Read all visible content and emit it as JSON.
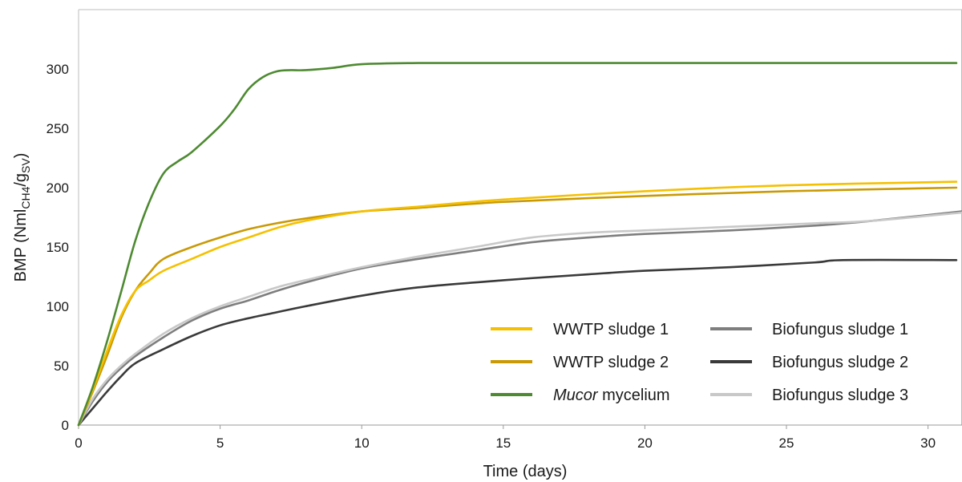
{
  "chart_data": {
    "type": "line",
    "xlabel": "Time (days)",
    "ylabel": {
      "main": "BMP (Nml",
      "sub1": "CH4",
      "mid": "/g",
      "sub2": "SV",
      "end": ")"
    },
    "xlim": [
      0,
      31.2
    ],
    "ylim": [
      0,
      350
    ],
    "xticks": [
      0,
      5,
      10,
      15,
      20,
      25,
      30
    ],
    "yticks": [
      0,
      50,
      100,
      150,
      200,
      250,
      300
    ],
    "grid": false,
    "legend_position": "bottom-right",
    "series": [
      {
        "name": "WWTP sludge 1",
        "color": "#F5C000",
        "x": [
          0,
          0.5,
          1,
          1.5,
          2,
          2.5,
          3,
          4,
          5,
          6,
          7,
          8,
          10,
          12,
          15,
          20,
          25,
          31
        ],
        "y": [
          0,
          30,
          62,
          92,
          113,
          122,
          130,
          140,
          150,
          158,
          166,
          172,
          180,
          184,
          190,
          197,
          202,
          205
        ]
      },
      {
        "name": "WWTP sludge 2",
        "color": "#C99A06",
        "x": [
          0,
          0.5,
          1,
          1.5,
          2,
          2.5,
          3,
          4,
          5,
          6,
          7,
          8,
          10,
          12,
          15,
          20,
          25,
          31
        ],
        "y": [
          0,
          28,
          58,
          90,
          113,
          128,
          140,
          150,
          158,
          165,
          170,
          174,
          180,
          183,
          188,
          193,
          197,
          200
        ]
      },
      {
        "name": "Mucor mycelium",
        "color": "#4E8A32",
        "x": [
          0,
          0.5,
          1,
          1.5,
          2,
          2.5,
          3,
          3.5,
          4,
          5,
          5.5,
          6,
          6.5,
          7,
          7.5,
          8,
          9,
          10,
          12,
          15,
          20,
          31
        ],
        "y": [
          0,
          32,
          70,
          112,
          155,
          188,
          212,
          222,
          230,
          252,
          266,
          283,
          293,
          298,
          299,
          299,
          301,
          304,
          305,
          305,
          305,
          305
        ]
      },
      {
        "name": "Biofungus sludge 1",
        "color": "#7E7E7E",
        "x": [
          0,
          0.5,
          1,
          1.5,
          2,
          3,
          4,
          5,
          6,
          7,
          8,
          10,
          12,
          14,
          16,
          18,
          20,
          23,
          26,
          28,
          31.2
        ],
        "y": [
          0,
          20,
          36,
          48,
          58,
          74,
          88,
          98,
          105,
          113,
          120,
          132,
          140,
          147,
          154,
          158,
          161,
          164,
          168,
          172,
          180
        ]
      },
      {
        "name": "Biofungus sludge 2",
        "color": "#3A3A3A",
        "x": [
          0,
          0.5,
          1,
          1.5,
          2,
          3,
          4,
          5,
          6,
          7,
          8,
          10,
          12,
          15,
          18,
          20,
          23,
          26,
          27,
          31
        ],
        "y": [
          0,
          14,
          28,
          41,
          52,
          64,
          75,
          84,
          90,
          95,
          100,
          109,
          116,
          122,
          127,
          130,
          133,
          137,
          139,
          139
        ]
      },
      {
        "name": "Biofungus sludge 3",
        "color": "#C8C8C8",
        "x": [
          0,
          0.5,
          1,
          1.5,
          2,
          3,
          4,
          5,
          6,
          7,
          8,
          10,
          12,
          14,
          16,
          18,
          20,
          23,
          26,
          28,
          31.2
        ],
        "y": [
          0,
          22,
          38,
          50,
          60,
          77,
          90,
          100,
          108,
          116,
          122,
          133,
          142,
          150,
          158,
          162,
          164,
          167,
          170,
          172,
          179
        ]
      }
    ]
  }
}
